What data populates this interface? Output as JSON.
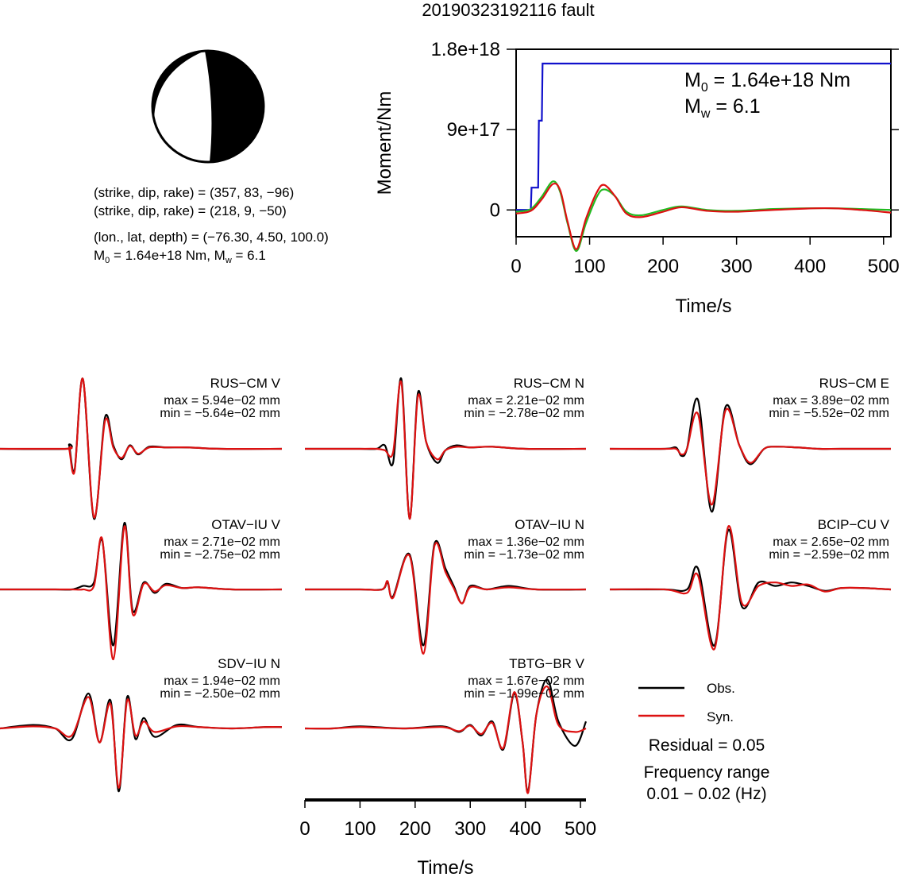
{
  "title": "20190323192116 fault",
  "info": {
    "np1": "(strike, dip, rake) = (357, 83, −96)",
    "np2": "(strike, dip, rake) = (218, 9, −50)",
    "loc": "(lon., lat, depth) = (−76.30, 4.50, 100.0)",
    "m0_label": "M",
    "m0_sub": "0",
    "m0_rest": " = 1.64e+18 Nm, M",
    "mw_sub": "w",
    "mw_rest": " = 6.1"
  },
  "colors": {
    "moment": "#1010cc",
    "observed": "#000000",
    "synthetic": "#dd1111",
    "stf_green": "#22bb22",
    "beach_fill": "#000000"
  },
  "legend": {
    "obs": "Obs.",
    "syn": "Syn.",
    "residual": "Residual = 0.05",
    "freq_title": "Frequency range",
    "freq_value": "0.01 − 0.02 (Hz)"
  },
  "chart_data": [
    {
      "type": "line",
      "id": "moment-rate",
      "xlabel": "Time/s",
      "ylabel": "Moment/Nm",
      "xlim": [
        0,
        510
      ],
      "ylim": [
        -3e+17,
        1.8e+18
      ],
      "xticks": [
        "0",
        "100",
        "200",
        "300",
        "400",
        "500"
      ],
      "xtick_values": [
        0,
        100,
        200,
        300,
        400,
        500
      ],
      "yticks": [
        "0",
        "9e+17",
        "1.8e+18"
      ],
      "ytick_values": [
        0,
        9e+17,
        1.8e+18
      ],
      "annotation": {
        "m0_label": "M",
        "m0_sub": "0",
        "m0_rest": " = 1.64e+18 Nm",
        "mw_label": "M",
        "mw_sub": "w",
        "mw_rest": " = 6.1"
      },
      "series": [
        {
          "role": "cumulative-moment",
          "color": "#1010cc",
          "x": [
            0,
            20,
            21,
            30,
            31,
            35,
            36,
            510
          ],
          "y": [
            0,
            0,
            2.5e+17,
            2.5e+17,
            1e+18,
            1e+18,
            1.64e+18,
            1.64e+18
          ]
        },
        {
          "role": "synthetic-trace",
          "color": "#22bb22",
          "x": [
            0,
            20,
            35,
            50,
            60,
            70,
            82,
            95,
            110,
            120,
            135,
            150,
            170,
            200,
            225,
            260,
            300,
            350,
            420,
            470,
            510
          ],
          "y": [
            -2e+16,
            1e+16,
            1.5e+17,
            3.2e+17,
            2e+17,
            -1.5e+17,
            -4.6e+17,
            -1.5e+17,
            1.5e+17,
            2.3e+17,
            1.5e+17,
            -2e+16,
            -6e+16,
            0,
            4e+16,
            0,
            -1e+16,
            1e+16,
            2e+16,
            1e+16,
            0
          ]
        },
        {
          "role": "observed-trace",
          "color": "#dd1111",
          "x": [
            0,
            20,
            35,
            50,
            60,
            70,
            82,
            95,
            110,
            120,
            135,
            150,
            170,
            200,
            225,
            260,
            300,
            350,
            420,
            470,
            510
          ],
          "y": [
            -4e+16,
            -1e+16,
            1.2e+17,
            2.9e+17,
            2.2e+17,
            -1.3e+17,
            -4.4e+17,
            -1e+17,
            2e+17,
            2.8e+17,
            1.5e+17,
            -4e+16,
            -8e+16,
            -2e+16,
            3e+16,
            -1e+16,
            -2e+16,
            0,
            2e+16,
            0,
            -3e+16
          ]
        }
      ]
    },
    {
      "type": "line",
      "id": "waveforms",
      "xlabel": "Time/s",
      "xlim": [
        0,
        510
      ],
      "xticks": [
        "0",
        "100",
        "200",
        "300",
        "400",
        "500"
      ],
      "xtick_values": [
        0,
        100,
        200,
        300,
        400,
        500
      ],
      "traces": [
        {
          "station": "RUS−CM V",
          "max": "max = 5.94e−02 mm",
          "min": "min = −5.64e−02 mm",
          "obs": {
            "t": [
              0,
              120,
              125,
              135,
              150,
              170,
              190,
              205,
              220,
              235,
              250,
              270,
              300,
              340,
              400,
              510
            ],
            "a": [
              0,
              0,
              0.05,
              -0.3,
              1.0,
              -1.0,
              0.45,
              0.05,
              -0.15,
              0.05,
              -0.08,
              0.03,
              0.02,
              0.02,
              0,
              0
            ]
          },
          "syn": {
            "t": [
              0,
              120,
              125,
              135,
              150,
              170,
              190,
              205,
              220,
              235,
              250,
              270,
              300,
              340,
              400,
              510
            ],
            "a": [
              0,
              0,
              0.0,
              -0.32,
              1.0,
              -0.98,
              0.4,
              0.02,
              -0.13,
              0.04,
              -0.07,
              0.02,
              0.02,
              0.02,
              0,
              0
            ]
          }
        },
        {
          "station": "RUS−CM N",
          "max": "max = 2.21e−02 mm",
          "min": "min = −2.78e−02 mm",
          "obs": {
            "t": [
              0,
              100,
              130,
              145,
              160,
              175,
              190,
              205,
              220,
              240,
              255,
              275,
              300,
              340,
              400,
              510
            ],
            "a": [
              0,
              0,
              0.0,
              0.05,
              -0.2,
              1.0,
              -1.0,
              0.8,
              0.1,
              -0.2,
              -0.02,
              0.05,
              0.02,
              0.03,
              0.0,
              0
            ]
          },
          "syn": {
            "t": [
              0,
              100,
              130,
              145,
              160,
              175,
              190,
              205,
              220,
              240,
              255,
              275,
              300,
              340,
              400,
              510
            ],
            "a": [
              0,
              0,
              0.0,
              -0.02,
              -0.05,
              0.95,
              -1.0,
              0.75,
              0.1,
              -0.15,
              -0.02,
              0.03,
              0.02,
              0.03,
              0.0,
              0
            ]
          }
        },
        {
          "station": "RUS−CM E",
          "max": "max = 3.89e−02 mm",
          "min": "min = −5.52e−02 mm",
          "obs": {
            "t": [
              0,
              100,
              120,
              130,
              140,
              160,
              185,
              210,
              235,
              255,
              280,
              300,
              340,
              380,
              420,
              510
            ],
            "a": [
              0,
              0,
              0.02,
              -0.1,
              0.0,
              0.7,
              -0.9,
              0.6,
              0.05,
              -0.22,
              0.0,
              0.03,
              0.02,
              0.0,
              0.0,
              0
            ]
          },
          "syn": {
            "t": [
              0,
              100,
              120,
              130,
              140,
              160,
              185,
              210,
              235,
              255,
              280,
              300,
              340,
              380,
              420,
              510
            ],
            "a": [
              0,
              0,
              0.0,
              -0.08,
              0.0,
              0.5,
              -0.8,
              0.55,
              0.05,
              -0.2,
              0.0,
              0.03,
              0.02,
              0.0,
              0.0,
              0
            ]
          }
        },
        {
          "station": "OTAV−IU V",
          "max": "max = 2.71e−02 mm",
          "min": "min = −2.75e−02 mm",
          "obs": {
            "t": [
              0,
              100,
              130,
              150,
              170,
              185,
              205,
              225,
              240,
              260,
              280,
              300,
              330,
              360,
              420,
              510
            ],
            "a": [
              0,
              0,
              0.0,
              0.05,
              0.1,
              0.7,
              -0.8,
              0.95,
              -0.3,
              0.1,
              -0.05,
              0.08,
              0.02,
              0.03,
              0.0,
              0
            ]
          },
          "syn": {
            "t": [
              0,
              100,
              130,
              150,
              170,
              185,
              205,
              225,
              240,
              260,
              280,
              300,
              330,
              360,
              420,
              510
            ],
            "a": [
              0,
              0,
              0.0,
              0.0,
              0.05,
              0.72,
              -1.0,
              0.9,
              -0.35,
              0.08,
              -0.03,
              0.06,
              0.02,
              0.03,
              0.0,
              0
            ]
          }
        },
        {
          "station": "OTAV−IU N",
          "max": "max = 1.36e−02 mm",
          "min": "min = −1.73e−02 mm",
          "obs": {
            "t": [
              0,
              100,
              140,
              150,
              160,
              190,
              215,
              235,
              255,
              270,
              285,
              300,
              330,
              370,
              420,
              510
            ],
            "a": [
              0,
              0,
              0.0,
              0.1,
              -0.1,
              0.5,
              -0.8,
              0.65,
              0.3,
              0.05,
              -0.2,
              0.05,
              0.0,
              0.05,
              0.0,
              0
            ]
          },
          "syn": {
            "t": [
              0,
              100,
              140,
              150,
              160,
              190,
              215,
              235,
              255,
              270,
              285,
              300,
              330,
              370,
              420,
              510
            ],
            "a": [
              0,
              0,
              0.0,
              0.12,
              -0.12,
              0.48,
              -0.92,
              0.62,
              0.25,
              0.02,
              -0.2,
              0.03,
              0.0,
              0.03,
              0.0,
              0
            ]
          }
        },
        {
          "station": "BCIP−CU V",
          "max": "max = 2.65e−02 mm",
          "min": "min = −2.59e−02 mm",
          "obs": {
            "t": [
              0,
              100,
              140,
              160,
              190,
              215,
              240,
              270,
              300,
              330,
              360,
              390,
              420,
              460,
              510
            ],
            "a": [
              0,
              0,
              0.0,
              0.3,
              -0.8,
              0.85,
              -0.25,
              0.1,
              0.05,
              0.1,
              0.05,
              -0.02,
              0.02,
              0.02,
              0
            ]
          },
          "syn": {
            "t": [
              0,
              100,
              140,
              160,
              190,
              215,
              240,
              270,
              300,
              330,
              360,
              390,
              420,
              460,
              510
            ],
            "a": [
              0,
              0,
              -0.05,
              0.2,
              -0.85,
              0.9,
              -0.2,
              0.05,
              0.1,
              0.05,
              0.07,
              -0.03,
              0.02,
              0.02,
              0
            ]
          }
        },
        {
          "station": "SDV−IU N",
          "max": "max = 1.94e−02 mm",
          "min": "min = −2.50e−02 mm",
          "obs": {
            "t": [
              0,
              60,
              100,
              130,
              160,
              180,
              200,
              215,
              230,
              245,
              260,
              280,
              320,
              360,
              420,
              480,
              510
            ],
            "a": [
              0,
              0.05,
              0.0,
              -0.15,
              0.5,
              -0.2,
              0.4,
              -0.9,
              0.45,
              -0.15,
              0.15,
              -0.12,
              0.05,
              0.02,
              0.0,
              0.02,
              0.02
            ]
          },
          "syn": {
            "t": [
              0,
              60,
              100,
              130,
              160,
              180,
              200,
              215,
              230,
              245,
              260,
              280,
              320,
              360,
              420,
              480,
              510
            ],
            "a": [
              0,
              0.03,
              0.0,
              -0.1,
              0.45,
              -0.2,
              0.35,
              -0.85,
              0.4,
              -0.1,
              0.1,
              -0.05,
              0.03,
              0.02,
              0.0,
              0.02,
              0.02
            ]
          }
        },
        {
          "station": "TBTG−BR V",
          "max": "max = 1.67e−02 mm",
          "min": "min = −1.99e−02 mm",
          "obs": {
            "t": [
              0,
              50,
              100,
              180,
              250,
              280,
              300,
              320,
              340,
              360,
              380,
              395,
              405,
              420,
              440,
              460,
              490,
              510
            ],
            "a": [
              0,
              0.0,
              0.03,
              0.0,
              0.03,
              -0.05,
              0.05,
              -0.1,
              0.1,
              -0.3,
              0.5,
              -0.2,
              -0.9,
              0.2,
              0.7,
              0.1,
              -0.25,
              0.1
            ]
          },
          "syn": {
            "t": [
              0,
              50,
              100,
              180,
              250,
              280,
              300,
              320,
              340,
              360,
              380,
              395,
              405,
              420,
              440,
              460,
              490,
              510
            ],
            "a": [
              0,
              0.0,
              0.02,
              0.0,
              0.02,
              -0.04,
              0.04,
              -0.08,
              0.08,
              -0.28,
              0.52,
              -0.2,
              -0.92,
              0.2,
              0.6,
              0.05,
              -0.05,
              0.0
            ]
          }
        }
      ]
    }
  ]
}
